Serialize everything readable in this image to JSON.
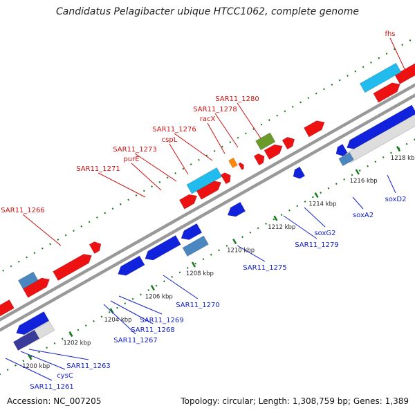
{
  "title": "Candidatus Pelagibacter ubique HTCC1062, complete genome",
  "footer": {
    "accession": "Accession: NC_007205",
    "stats": "Topology: circular; Length: 1,308,759 bp; Genes: 1,389"
  },
  "colors": {
    "forward": "#ee1111",
    "reverse": "#1122dd",
    "rna": "#22bbee",
    "highlight_green": "#6a9a2a",
    "highlight_orange": "#ff8800",
    "backbone": "#999999",
    "pseudo": "#dddddd"
  },
  "ruler": {
    "ticks_kbp": [
      1200,
      1202,
      1204,
      1206,
      1208,
      1210,
      1212,
      1214,
      1216,
      1218
    ],
    "labels": [
      "1200 kbp",
      "1202 kbp",
      "1204 kbp",
      "1206 kbp",
      "1208 kbp",
      "1210 kbp",
      "1212 kbp",
      "1214 kbp",
      "1216 kbp",
      "1218 kbp"
    ]
  },
  "forward_labels": [
    "SAR11_1266",
    "SAR11_1271",
    "purE",
    "SAR11_1273",
    "cspL",
    "SAR11_1276",
    "racX",
    "SAR11_1278",
    "SAR11_1280",
    "fhs"
  ],
  "reverse_labels": [
    "SAR11_1261",
    "cysC",
    "SAR11_1263",
    "SAR11_1267",
    "SAR11_1268",
    "SAR11_1269",
    "SAR11_1270",
    "SAR11_1275",
    "SAR11_1279",
    "soxG2",
    "soxA2",
    "soxD2"
  ]
}
